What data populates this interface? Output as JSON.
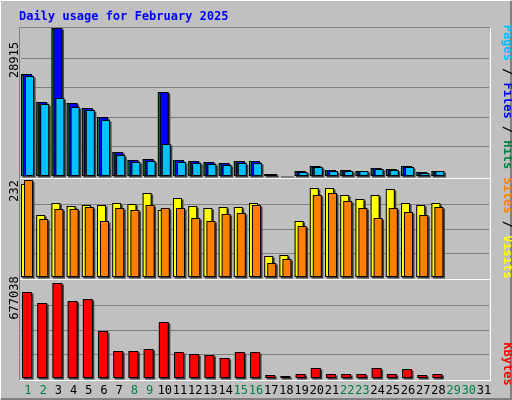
{
  "chart_data": [
    {
      "type": "bar",
      "title": "Daily usage for February 2025",
      "categories": [
        "1",
        "2",
        "3",
        "4",
        "5",
        "6",
        "7",
        "8",
        "9",
        "10",
        "11",
        "12",
        "13",
        "14",
        "15",
        "16",
        "17",
        "18",
        "19",
        "20",
        "21",
        "22",
        "23",
        "24",
        "25",
        "26",
        "27",
        "28",
        "29",
        "30",
        "31"
      ],
      "weekend_days": [
        "1",
        "2",
        "8",
        "9",
        "15",
        "16",
        "22",
        "23",
        "29",
        "30"
      ],
      "ymax_label": "28915",
      "ylim": [
        0,
        28915
      ],
      "legend": [
        "Pages",
        "Files",
        "Hits"
      ],
      "series": [
        {
          "name": "Hits",
          "color": "#008040",
          "values": [
            20000,
            14500,
            28915,
            14200,
            13300,
            11600,
            4600,
            3100,
            3400,
            16500,
            3100,
            2900,
            2700,
            2500,
            2900,
            2900,
            400,
            260,
            1050,
            1900,
            1150,
            1100,
            1050,
            1500,
            1400,
            2000,
            750,
            1000,
            0,
            0,
            0
          ]
        },
        {
          "name": "Files",
          "color": "#0000ff",
          "values": [
            20000,
            14500,
            28915,
            14200,
            13300,
            11600,
            4600,
            3100,
            3400,
            16500,
            3100,
            2900,
            2700,
            2500,
            2900,
            2900,
            400,
            260,
            1050,
            1900,
            1150,
            1100,
            1050,
            1500,
            1400,
            2000,
            750,
            1000,
            0,
            0,
            0
          ]
        },
        {
          "name": "Pages",
          "color": "#00c0ff",
          "values": [
            19500,
            14000,
            15200,
            13500,
            12900,
            11000,
            4200,
            2800,
            3000,
            6200,
            2800,
            2600,
            2400,
            2200,
            2600,
            2600,
            300,
            200,
            800,
            1700,
            1000,
            900,
            900,
            1300,
            1100,
            1800,
            600,
            900,
            0,
            0,
            0
          ]
        }
      ]
    },
    {
      "type": "bar",
      "categories": [
        "1",
        "2",
        "3",
        "4",
        "5",
        "6",
        "7",
        "8",
        "9",
        "10",
        "11",
        "12",
        "13",
        "14",
        "15",
        "16",
        "17",
        "18",
        "19",
        "20",
        "21",
        "22",
        "23",
        "24",
        "25",
        "26",
        "27",
        "28",
        "29",
        "30",
        "31"
      ],
      "ymax_label": "232",
      "ylim": [
        0,
        232
      ],
      "legend": [
        "Sites",
        "Visits"
      ],
      "series": [
        {
          "name": "Visits",
          "color": "#ffff00",
          "values": [
            222,
            148,
            176,
            170,
            172,
            173,
            176,
            175,
            200,
            161,
            188,
            169,
            166,
            168,
            168,
            176,
            50,
            52,
            135,
            213,
            212,
            195,
            186,
            195,
            210,
            176,
            172,
            177,
            0,
            0,
            0
          ]
        },
        {
          "name": "Sites",
          "color": "#ff8000",
          "values": [
            232,
            138,
            162,
            163,
            168,
            135,
            166,
            160,
            172,
            164,
            164,
            140,
            135,
            150,
            153,
            173,
            33,
            42,
            123,
            195,
            202,
            182,
            165,
            142,
            165,
            155,
            148,
            168,
            0,
            0,
            0
          ]
        }
      ]
    },
    {
      "type": "bar",
      "categories": [
        "1",
        "2",
        "3",
        "4",
        "5",
        "6",
        "7",
        "8",
        "9",
        "10",
        "11",
        "12",
        "13",
        "14",
        "15",
        "16",
        "17",
        "18",
        "19",
        "20",
        "21",
        "22",
        "23",
        "24",
        "25",
        "26",
        "27",
        "28",
        "29",
        "30",
        "31"
      ],
      "ymax_label": "677038",
      "ylim": [
        0,
        677038
      ],
      "legend": [
        "KBytes"
      ],
      "series": [
        {
          "name": "KBytes",
          "color": "#ff0000",
          "values": [
            600000,
            520000,
            660000,
            540000,
            550000,
            330000,
            190000,
            190000,
            200000,
            390000,
            180000,
            170000,
            160000,
            140000,
            180000,
            180000,
            22000,
            12000,
            26000,
            70000,
            30000,
            28000,
            30000,
            70000,
            30000,
            60000,
            20000,
            30000,
            0,
            0,
            0
          ]
        }
      ]
    }
  ]
}
